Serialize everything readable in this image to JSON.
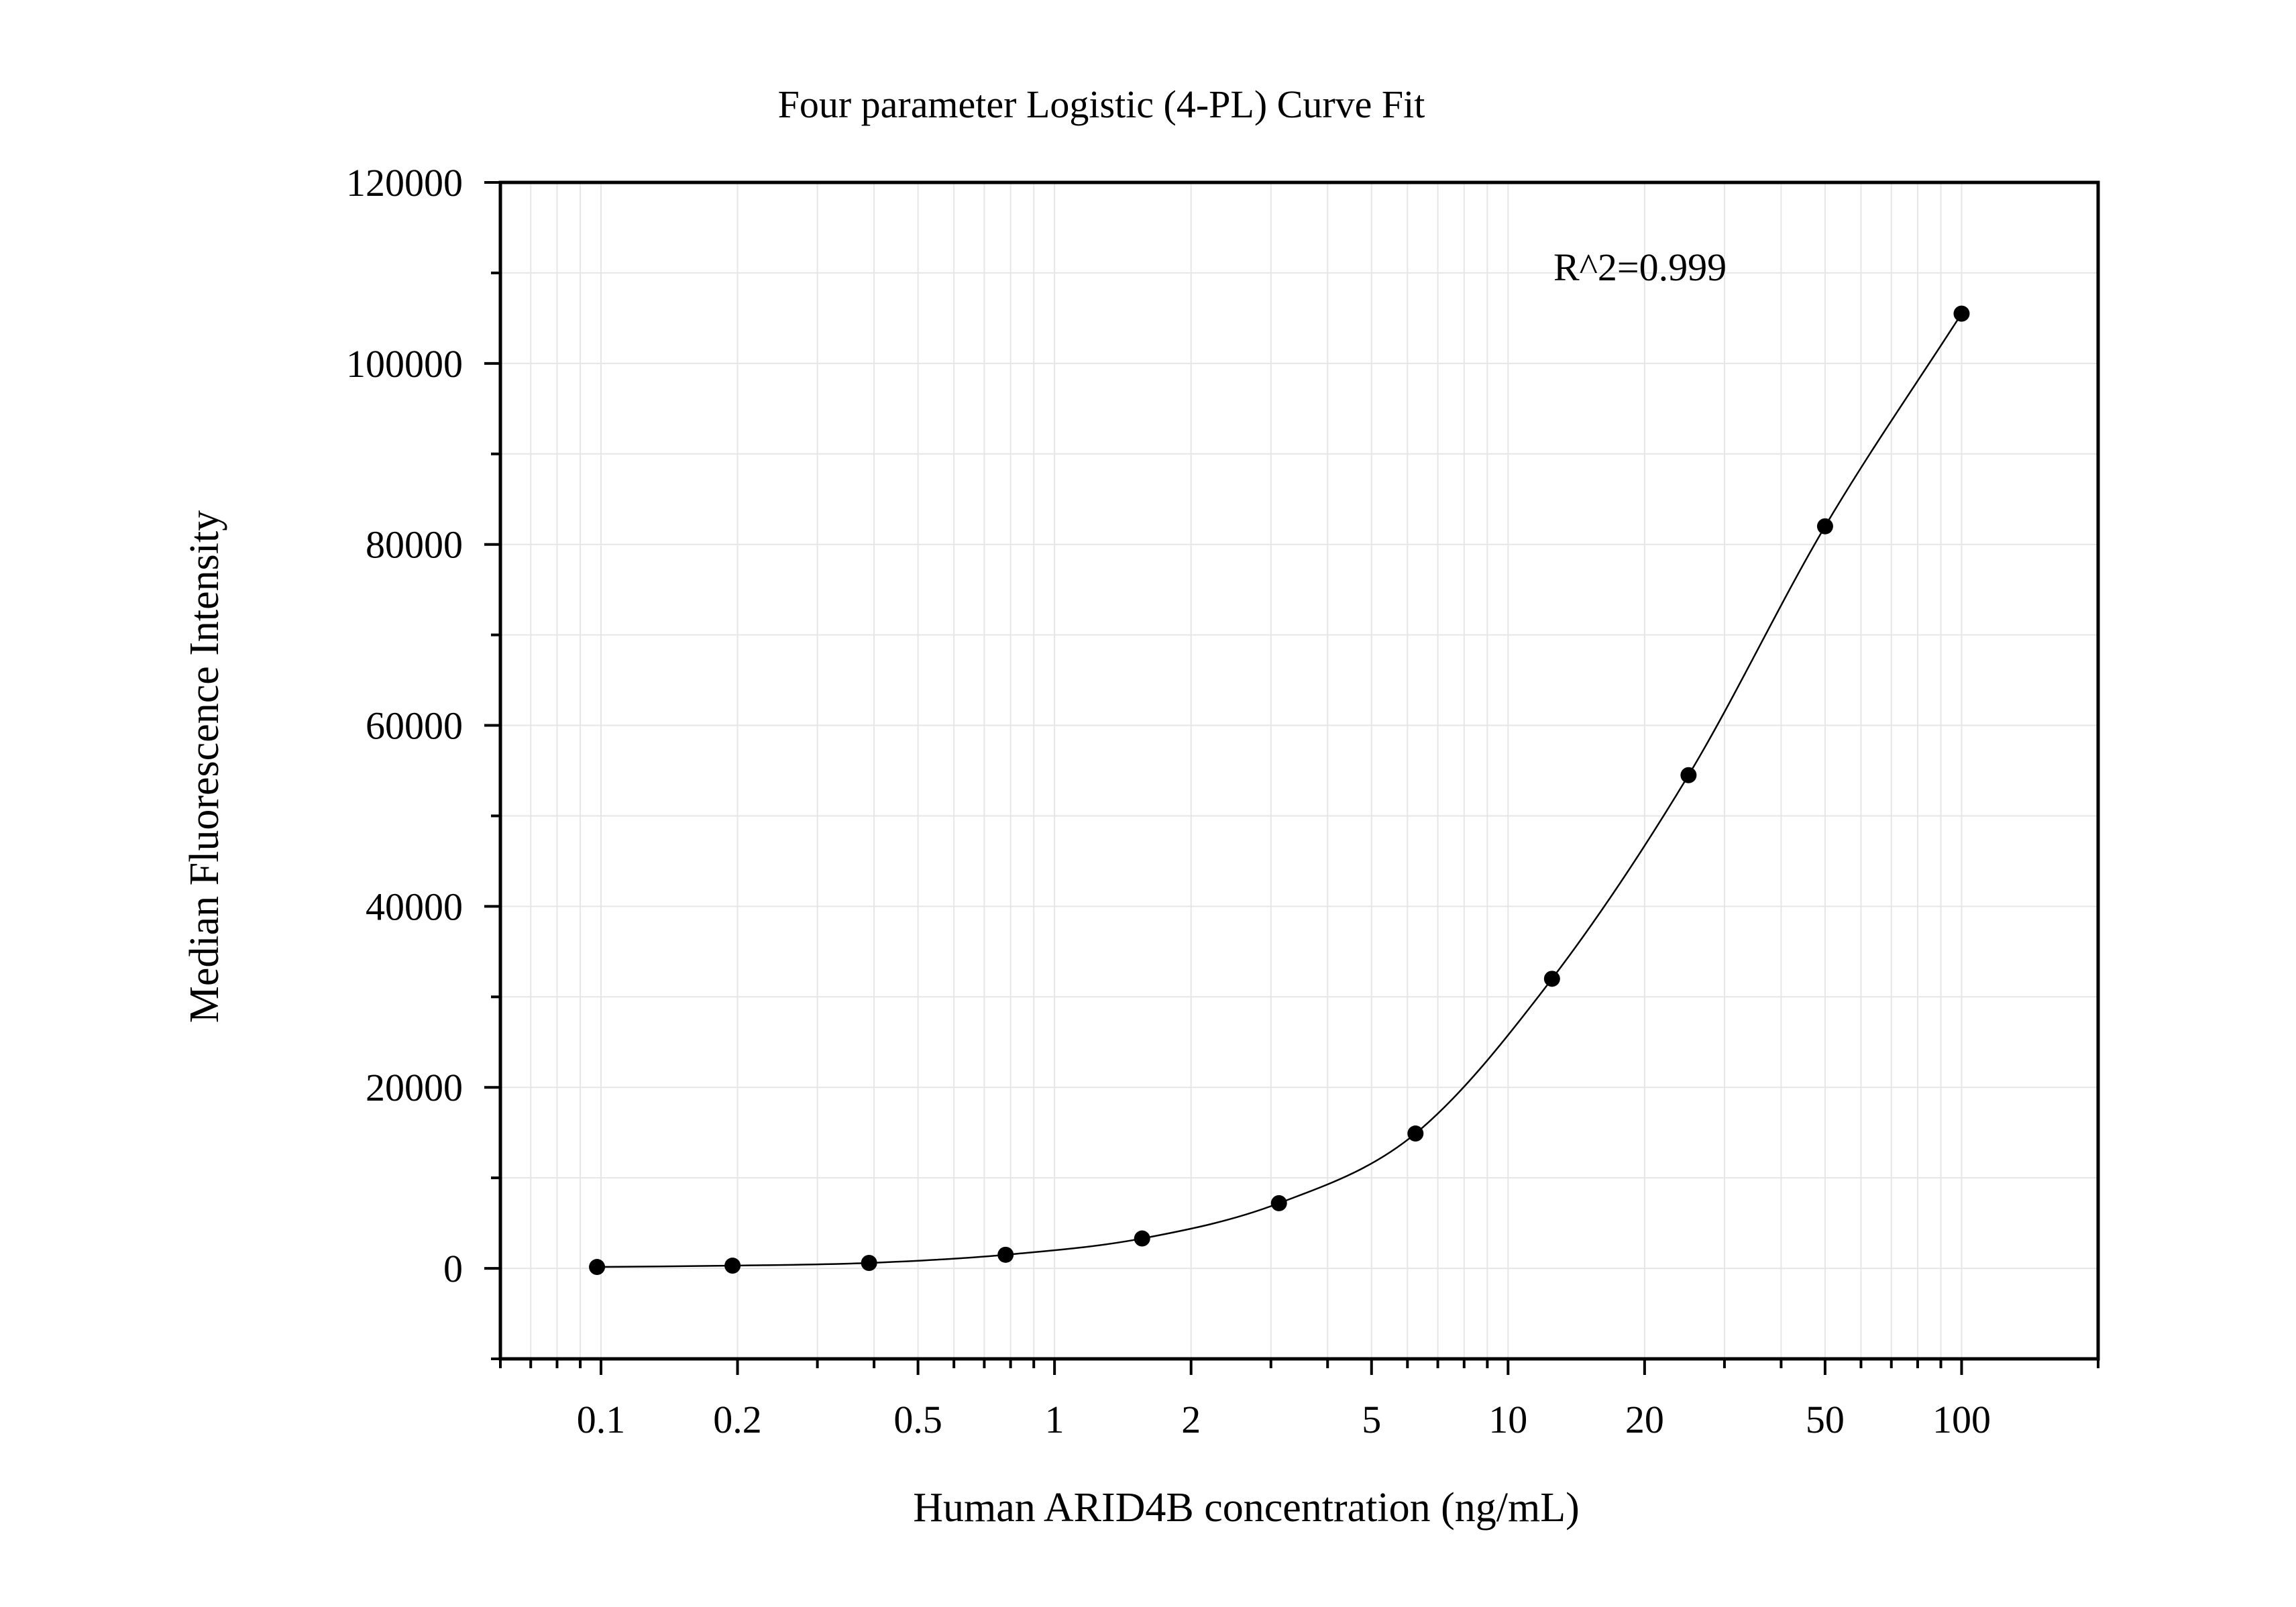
{
  "chart_data": {
    "type": "scatter",
    "title": "Four parameter Logistic (4-PL) Curve Fit",
    "xlabel": "Human ARID4B concentration (ng/mL)",
    "ylabel": "Median Fluorescence Intensity",
    "x_scale": "log",
    "xlim": [
      0.06,
      200
    ],
    "ylim": [
      -10000,
      120000
    ],
    "x_ticks": [
      0.1,
      0.2,
      0.5,
      1,
      2,
      5,
      10,
      20,
      50,
      100
    ],
    "x_tick_labels": [
      "0.1",
      "0.2",
      "0.5",
      "1",
      "2",
      "5",
      "10",
      "20",
      "50",
      "100"
    ],
    "y_ticks": [
      0,
      20000,
      40000,
      60000,
      80000,
      100000,
      120000
    ],
    "y_tick_labels": [
      "0",
      "20000",
      "40000",
      "60000",
      "80000",
      "100000",
      "120000"
    ],
    "grid": true,
    "annotation": "R^2=0.999",
    "series": [
      {
        "type": "scatter",
        "x": [
          0.098,
          0.195,
          0.39,
          0.78,
          1.56,
          3.125,
          6.25,
          12.5,
          25,
          50,
          100
        ],
        "y": [
          150,
          300,
          600,
          1500,
          3300,
          7200,
          14900,
          32000,
          54500,
          82000,
          105500
        ]
      },
      {
        "type": "line",
        "fit": "4-PL",
        "x": [
          0.098,
          0.195,
          0.39,
          0.78,
          1.56,
          3.125,
          6.25,
          12.5,
          25,
          50,
          100
        ],
        "y": [
          150,
          300,
          600,
          1500,
          3300,
          7200,
          14900,
          32000,
          54500,
          82000,
          105500
        ]
      }
    ]
  }
}
